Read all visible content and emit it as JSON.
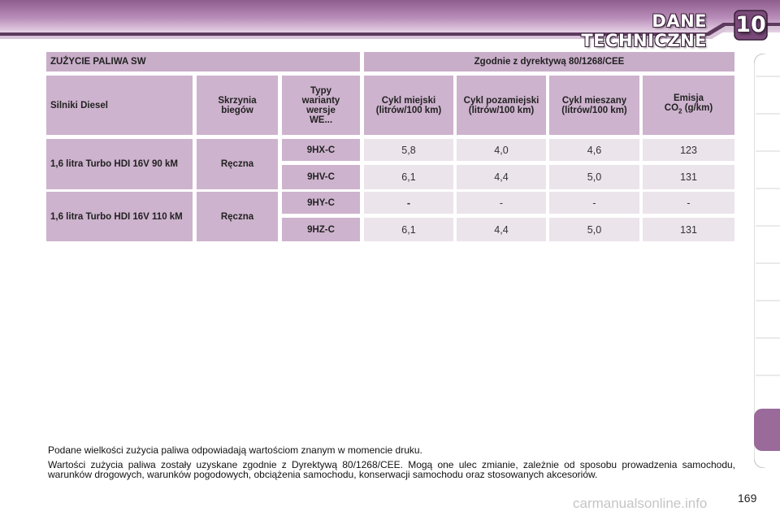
{
  "header": {
    "title": "DANE TECHNICZNE",
    "chapter": "10"
  },
  "table": {
    "title_left": "ZUŻYCIE PALIWA SW",
    "title_right": "Zgodnie z dyrektywą 80/1268/CEE",
    "columns": {
      "engines": "Silniki Diesel",
      "gearbox": "Skrzynia biegów",
      "variants": "Typy warianty wersje WE...",
      "urban": "Cykl miejski (litrów/100 km)",
      "extra_urban": "Cykl pozamiejski (litrów/100 km)",
      "combined": "Cykl mieszany (litrów/100 km)",
      "emission_prefix": "Emisja",
      "emission_co": "CO",
      "emission_sub": "2",
      "emission_unit": " (g/km)"
    },
    "groups": [
      {
        "engine": "1,6 litra Turbo HDI 16V 90 kM",
        "gearbox": "Ręczna",
        "rows": [
          {
            "variant": "9HX-C",
            "urban": "5,8",
            "extra_urban": "4,0",
            "combined": "4,6",
            "co2": "123"
          },
          {
            "variant": "9HV-C",
            "urban": "6,1",
            "extra_urban": "4,4",
            "combined": "5,0",
            "co2": "131"
          }
        ]
      },
      {
        "engine": "1,6 litra Turbo HDI 16V 110 kM",
        "gearbox": "Ręczna",
        "rows": [
          {
            "variant": "9HY-C",
            "urban": "-",
            "extra_urban": "-",
            "combined": "-",
            "co2": "-"
          },
          {
            "variant": "9HZ-C",
            "urban": "6,1",
            "extra_urban": "4,4",
            "combined": "5,0",
            "co2": "131"
          }
        ]
      }
    ]
  },
  "notes": [
    "Podane wielkości zużycia paliwa odpowiadają wartościom znanym w momencie druku.",
    "Wartości zużycia paliwa zostały uzyskane zgodnie z Dyrektywą 80/1268/CEE. Mogą one ulec zmianie, zależnie od sposobu prowadzenia samochodu, warunków drogowych, warunków pogodowych, obciążenia samochodu, konserwacji samochodu oraz stosowanych akcesoriów."
  ],
  "page_number": "169",
  "watermark": "carmanualsonline.info",
  "colors": {
    "header_dark": "#7a4a7a",
    "header_light": "#c9a6c9",
    "cell_header": "#c9aec9",
    "cell_light": "#ebe4eb",
    "accent_tab": "#9a6a9a"
  }
}
